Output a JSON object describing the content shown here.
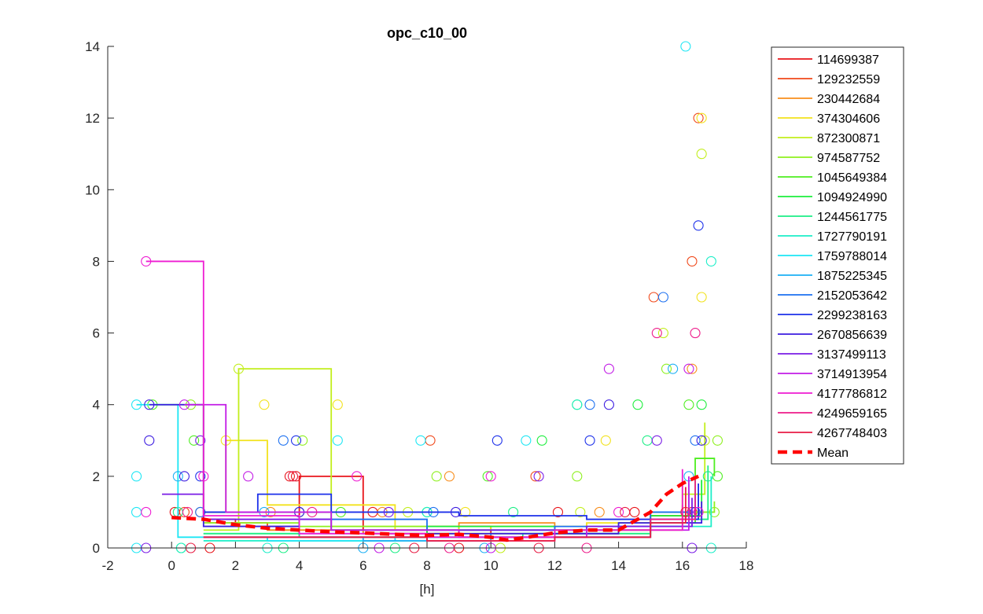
{
  "chart_data": {
    "type": "scatter",
    "title": "opc_c10_00",
    "xlabel": "[h]",
    "ylabel": "",
    "xlim": [
      -2,
      18
    ],
    "ylim": [
      0,
      14
    ],
    "xticks": [
      -2,
      0,
      2,
      4,
      6,
      8,
      10,
      12,
      14,
      16,
      18
    ],
    "yticks": [
      0,
      2,
      4,
      6,
      8,
      10,
      12,
      14
    ],
    "grid": false,
    "legend_position": "outside-top-right",
    "series": [
      {
        "name": "114699387",
        "color": "#e8141a",
        "points": [
          [
            0.1,
            1
          ],
          [
            1.2,
            0
          ],
          [
            3.7,
            2
          ],
          [
            3.9,
            2
          ],
          [
            6.3,
            1
          ],
          [
            9.0,
            0
          ],
          [
            12.1,
            1
          ],
          [
            14.5,
            1
          ],
          [
            16.3,
            1
          ]
        ],
        "x": [
          1.0,
          2.0,
          4.0,
          6.0,
          8.0,
          10.0,
          12.0,
          14.0,
          16.0
        ],
        "y": [
          0.8,
          0.6,
          2.0,
          0.5,
          0.6,
          0.3,
          0.4,
          0.6,
          1.2
        ]
      },
      {
        "name": "129232559",
        "color": "#f0481a",
        "points": [
          [
            0.4,
            1
          ],
          [
            8.1,
            3
          ],
          [
            11.4,
            2
          ],
          [
            15.1,
            7
          ],
          [
            16.3,
            8
          ],
          [
            16.5,
            12
          ]
        ],
        "x": [
          1.0,
          3.0,
          6.0,
          9.0,
          12.0,
          15.0,
          16.5
        ],
        "y": [
          0.7,
          0.5,
          0.4,
          0.6,
          0.5,
          0.9,
          1.0
        ]
      },
      {
        "name": "230442684",
        "color": "#f88e1c",
        "points": [
          [
            0.9,
            1
          ],
          [
            3.1,
            1
          ],
          [
            6.6,
            1
          ],
          [
            8.7,
            2
          ],
          [
            13.4,
            1
          ],
          [
            16.3,
            5
          ]
        ],
        "x": [
          1.0,
          3.0,
          6.0,
          9.0,
          12.0,
          15.0,
          16.5
        ],
        "y": [
          0.6,
          0.5,
          0.4,
          0.7,
          0.5,
          0.9,
          1.1
        ]
      },
      {
        "name": "374304606",
        "color": "#f2e21c",
        "points": [
          [
            1.7,
            3
          ],
          [
            2.9,
            4
          ],
          [
            5.2,
            4
          ],
          [
            9.2,
            1
          ],
          [
            13.6,
            3
          ],
          [
            16.6,
            12
          ],
          [
            16.6,
            7
          ]
        ],
        "x": [
          1.0,
          1.7,
          3.0,
          4.0,
          7.0,
          10.0,
          13.0,
          16.0
        ],
        "y": [
          1.0,
          3.0,
          1.2,
          1.2,
          0.5,
          0.6,
          0.7,
          1.9
        ]
      },
      {
        "name": "872300871",
        "color": "#c2ee1c",
        "points": [
          [
            2.1,
            5
          ],
          [
            7.4,
            1
          ],
          [
            10.3,
            0
          ],
          [
            12.8,
            1
          ],
          [
            15.4,
            6
          ],
          [
            16.6,
            11
          ],
          [
            16.7,
            3
          ]
        ],
        "x": [
          1.0,
          2.1,
          5.0,
          9.0,
          13.0,
          16.0,
          16.7
        ],
        "y": [
          0.5,
          5.0,
          0.6,
          0.4,
          0.5,
          1.5,
          3.5
        ]
      },
      {
        "name": "974587752",
        "color": "#8ef01e",
        "points": [
          [
            0.6,
            4
          ],
          [
            4.1,
            3
          ],
          [
            8.3,
            2
          ],
          [
            12.7,
            2
          ],
          [
            15.5,
            5
          ],
          [
            17.1,
            3
          ],
          [
            17.0,
            1
          ]
        ],
        "x": [
          1.0,
          4.0,
          8.0,
          12.0,
          15.0,
          17.0
        ],
        "y": [
          0.7,
          0.6,
          0.4,
          0.5,
          1.0,
          1.3
        ]
      },
      {
        "name": "1045649384",
        "color": "#4eee20",
        "points": [
          [
            -0.6,
            4
          ],
          [
            0.7,
            3
          ],
          [
            5.3,
            1
          ],
          [
            9.9,
            2
          ],
          [
            12.7,
            4
          ],
          [
            16.2,
            4
          ],
          [
            17.1,
            2
          ]
        ],
        "x": [
          -0.6,
          1.0,
          5.0,
          10.0,
          14.0,
          16.4,
          17.0
        ],
        "y": [
          4.0,
          1.0,
          0.5,
          0.5,
          0.7,
          2.5,
          2.0
        ]
      },
      {
        "name": "1094924990",
        "color": "#1cee3c",
        "points": [
          [
            0.3,
            0
          ],
          [
            4.0,
            1
          ],
          [
            8.0,
            1
          ],
          [
            11.6,
            3
          ],
          [
            14.6,
            4
          ],
          [
            16.6,
            4
          ]
        ],
        "x": [
          1.0,
          4.0,
          8.0,
          12.0,
          15.0,
          16.6
        ],
        "y": [
          0.4,
          0.3,
          0.6,
          0.4,
          0.9,
          1.9
        ]
      },
      {
        "name": "1244561775",
        "color": "#1cee86",
        "points": [
          [
            0.2,
            1
          ],
          [
            3.5,
            0
          ],
          [
            7.0,
            0
          ],
          [
            10.7,
            1
          ],
          [
            14.9,
            3
          ],
          [
            16.8,
            2
          ]
        ],
        "x": [
          1.0,
          4.0,
          7.0,
          11.0,
          15.0,
          16.8
        ],
        "y": [
          0.4,
          0.3,
          0.3,
          0.4,
          0.8,
          2.3
        ]
      },
      {
        "name": "1727790191",
        "color": "#1ceec8",
        "points": [
          [
            0.3,
            0
          ],
          [
            3.0,
            0
          ],
          [
            8.0,
            1
          ],
          [
            12.7,
            4
          ],
          [
            16.9,
            8
          ],
          [
            16.9,
            0
          ]
        ],
        "x": [
          1.0,
          4.0,
          8.0,
          12.0,
          15.0,
          16.9
        ],
        "y": [
          0.2,
          0.2,
          0.3,
          0.3,
          0.6,
          2.0
        ]
      },
      {
        "name": "1759788014",
        "color": "#1ce6f4",
        "points": [
          [
            -1.1,
            4
          ],
          [
            -1.1,
            2
          ],
          [
            -1.1,
            1
          ],
          [
            -1.1,
            0
          ],
          [
            5.2,
            3
          ],
          [
            7.8,
            3
          ],
          [
            11.1,
            3
          ],
          [
            16.1,
            14
          ]
        ],
        "x": [
          -1.1,
          0.2,
          3.0,
          7.0,
          11.0,
          15.0,
          16.2
        ],
        "y": [
          4.0,
          0.3,
          0.2,
          0.3,
          0.3,
          0.6,
          1.8
        ]
      },
      {
        "name": "1875225345",
        "color": "#1cb0f4",
        "points": [
          [
            0.2,
            2
          ],
          [
            2.9,
            1
          ],
          [
            6.0,
            0
          ],
          [
            9.8,
            0
          ],
          [
            15.7,
            5
          ],
          [
            16.2,
            2
          ]
        ],
        "x": [
          1.0,
          3.0,
          6.0,
          10.0,
          14.0,
          16.2
        ],
        "y": [
          0.3,
          0.3,
          0.2,
          0.4,
          0.6,
          1.6
        ]
      },
      {
        "name": "2152053642",
        "color": "#1c70f0",
        "points": [
          [
            0.9,
            1
          ],
          [
            3.5,
            3
          ],
          [
            8.2,
            1
          ],
          [
            13.1,
            4
          ],
          [
            15.4,
            7
          ],
          [
            16.4,
            3
          ]
        ],
        "x": [
          1.0,
          4.0,
          8.0,
          12.0,
          15.0,
          16.4
        ],
        "y": [
          0.6,
          0.8,
          0.5,
          0.6,
          1.0,
          1.5
        ]
      },
      {
        "name": "2299238163",
        "color": "#1c30ea",
        "points": [
          [
            0.9,
            2
          ],
          [
            3.9,
            3
          ],
          [
            10.2,
            3
          ],
          [
            13.1,
            3
          ],
          [
            16.5,
            9
          ],
          [
            16.4,
            1
          ]
        ],
        "x": [
          1.0,
          2.7,
          5.0,
          9.0,
          13.0,
          16.5
        ],
        "y": [
          1.0,
          1.5,
          1.0,
          0.9,
          0.8,
          1.8
        ]
      },
      {
        "name": "2670856639",
        "color": "#3c1ce0",
        "points": [
          [
            -0.7,
            4
          ],
          [
            -0.7,
            3
          ],
          [
            0.4,
            2
          ],
          [
            4.0,
            1
          ],
          [
            8.9,
            1
          ],
          [
            13.7,
            4
          ],
          [
            16.6,
            3
          ]
        ],
        "x": [
          -0.7,
          1.0,
          4.0,
          9.0,
          14.0,
          16.6
        ],
        "y": [
          4.0,
          0.6,
          0.4,
          0.4,
          0.7,
          1.3
        ]
      },
      {
        "name": "3137499113",
        "color": "#7a1ce6",
        "points": [
          [
            -0.8,
            0
          ],
          [
            0.9,
            3
          ],
          [
            6.8,
            1
          ],
          [
            11.5,
            2
          ],
          [
            15.2,
            3
          ],
          [
            16.3,
            0
          ]
        ],
        "x": [
          -0.3,
          1.0,
          5.0,
          9.0,
          13.0,
          16.3
        ],
        "y": [
          1.5,
          0.8,
          0.5,
          0.5,
          0.6,
          1.4
        ]
      },
      {
        "name": "3714913954",
        "color": "#c21ce6",
        "points": [
          [
            0.4,
            4
          ],
          [
            2.4,
            2
          ],
          [
            6.5,
            0
          ],
          [
            10.0,
            0
          ],
          [
            13.7,
            5
          ],
          [
            16.2,
            5
          ]
        ],
        "x": [
          0.4,
          1.7,
          5.0,
          9.0,
          13.0,
          16.2
        ],
        "y": [
          4.0,
          1.0,
          0.5,
          0.3,
          0.5,
          2.0
        ]
      },
      {
        "name": "4177786812",
        "color": "#ee1cd2",
        "points": [
          [
            -0.8,
            8
          ],
          [
            -0.8,
            1
          ],
          [
            1.0,
            2
          ],
          [
            5.8,
            2
          ],
          [
            10.0,
            2
          ],
          [
            14.0,
            1
          ],
          [
            16.5,
            1
          ]
        ],
        "x": [
          -0.8,
          1.0,
          4.0,
          8.0,
          12.0,
          16.0
        ],
        "y": [
          8.0,
          0.9,
          0.4,
          0.3,
          0.5,
          2.2
        ]
      },
      {
        "name": "4249659165",
        "color": "#ee1c8a",
        "points": [
          [
            0.5,
            1
          ],
          [
            4.4,
            1
          ],
          [
            8.7,
            0
          ],
          [
            13.0,
            0
          ],
          [
            15.2,
            6
          ],
          [
            16.4,
            6
          ]
        ],
        "x": [
          1.0,
          4.0,
          8.0,
          12.0,
          15.0,
          16.4
        ],
        "y": [
          0.3,
          0.3,
          0.2,
          0.3,
          0.8,
          1.9
        ]
      },
      {
        "name": "4267748403",
        "color": "#e81c44",
        "points": [
          [
            0.6,
            0
          ],
          [
            3.8,
            2
          ],
          [
            7.6,
            0
          ],
          [
            11.5,
            0
          ],
          [
            14.2,
            1
          ],
          [
            16.1,
            1
          ]
        ],
        "x": [
          1.0,
          4.0,
          8.0,
          12.0,
          15.0,
          16.1
        ],
        "y": [
          0.3,
          0.3,
          0.2,
          0.3,
          0.7,
          1.7
        ]
      }
    ],
    "mean": {
      "name": "Mean",
      "color": "#ff0000",
      "x": [
        0.0,
        1.0,
        2.0,
        3.0,
        4.0,
        5.0,
        6.0,
        7.0,
        8.0,
        9.0,
        10.0,
        10.5,
        11.0,
        12.0,
        13.0,
        14.0,
        15.0,
        15.5,
        16.0,
        16.5
      ],
      "y": [
        0.85,
        0.8,
        0.65,
        0.55,
        0.5,
        0.45,
        0.42,
        0.38,
        0.35,
        0.38,
        0.3,
        0.22,
        0.28,
        0.42,
        0.5,
        0.5,
        1.0,
        1.5,
        1.8,
        2.0
      ]
    }
  }
}
